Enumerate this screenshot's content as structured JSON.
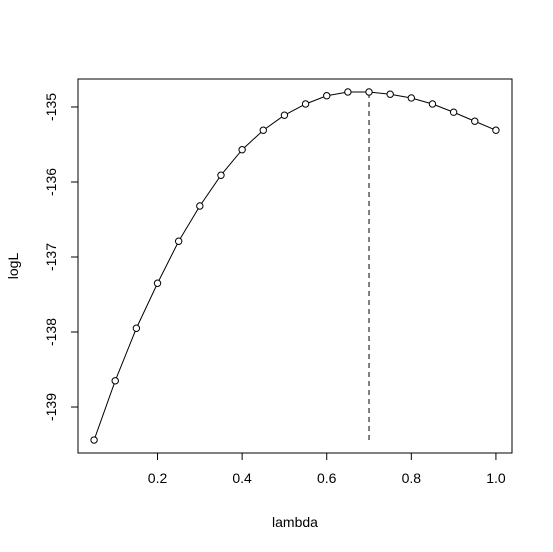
{
  "chart_data": {
    "type": "line",
    "x_label": "lambda",
    "y_label": "logL",
    "x": [
      0.05,
      0.1,
      0.15,
      0.2,
      0.25,
      0.3,
      0.35,
      0.4,
      0.45,
      0.5,
      0.55,
      0.6,
      0.65,
      0.7,
      0.75,
      0.8,
      0.85,
      0.9,
      0.95,
      1.0
    ],
    "values": [
      -139.44,
      -138.65,
      -137.95,
      -137.35,
      -136.79,
      -136.32,
      -135.91,
      -135.57,
      -135.31,
      -135.11,
      -134.96,
      -134.85,
      -134.8,
      -134.8,
      -134.83,
      -134.88,
      -134.96,
      -135.07,
      -135.19,
      -135.31
    ],
    "color": "#000000",
    "vline": {
      "x": 0.7,
      "y": [
        -139.44,
        -134.8
      ]
    },
    "xlim": [
      0.012,
      1.038
    ],
    "ylim": [
      -139.613,
      -134.627
    ],
    "xticks": [
      {
        "value": 0.2,
        "label": "0.2"
      },
      {
        "value": 0.4,
        "label": "0.4"
      },
      {
        "value": 0.6,
        "label": "0.6"
      },
      {
        "value": 0.8,
        "label": "0.8"
      },
      {
        "value": 1.0,
        "label": "1.0"
      }
    ],
    "yticks": [
      -139,
      -138,
      -137,
      -136,
      -135
    ],
    "grid": false
  }
}
